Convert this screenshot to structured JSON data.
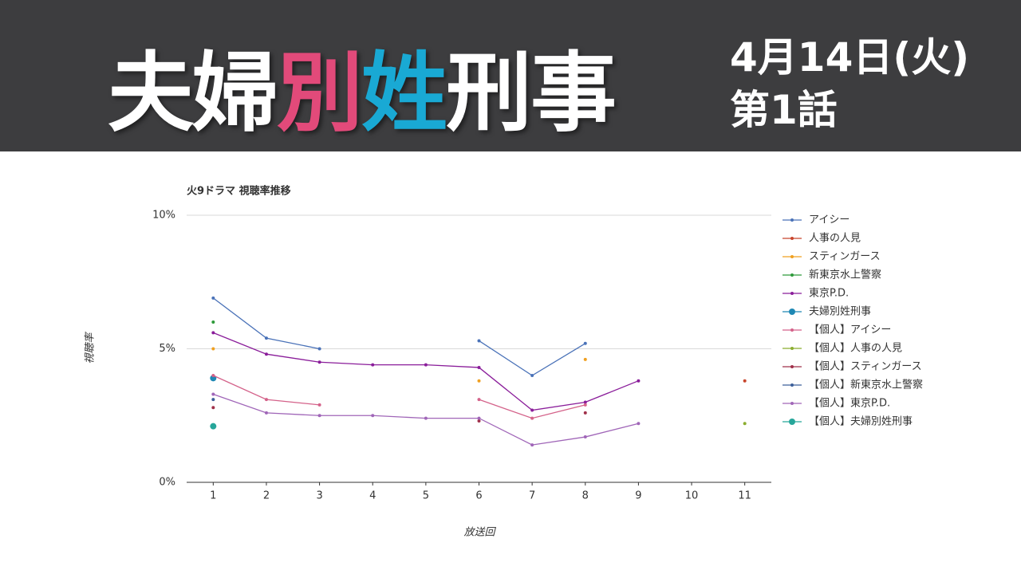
{
  "header": {
    "title_segments": [
      {
        "text": "夫婦",
        "color": "#ffffff"
      },
      {
        "text": "別",
        "color": "#e24a7a"
      },
      {
        "text": "姓",
        "color": "#19a9d4"
      },
      {
        "text": "刑事",
        "color": "#ffffff"
      }
    ],
    "date": "4月14日(火)",
    "episode": "第1話"
  },
  "chart_data": {
    "type": "line",
    "title": "火9ドラマ 視聴率推移",
    "x_label": "放送回",
    "y_label": "視聴率",
    "x": [
      1,
      2,
      3,
      4,
      5,
      6,
      7,
      8,
      9,
      10,
      11
    ],
    "xlim": [
      0.5,
      11.5
    ],
    "xticks": [
      1,
      2,
      3,
      4,
      5,
      6,
      7,
      8,
      9,
      10,
      11
    ],
    "ylim": [
      0,
      10
    ],
    "yticks": [
      {
        "value": 0,
        "label": "0%"
      },
      {
        "value": 5,
        "label": "5%"
      },
      {
        "value": 10,
        "label": "10%"
      }
    ],
    "grid": true,
    "series": [
      {
        "name": "アイシー",
        "color": "#4a72b8",
        "marker_radius": 2,
        "values": [
          6.9,
          5.4,
          5.0,
          null,
          null,
          5.3,
          4.0,
          5.2,
          null,
          null,
          null
        ]
      },
      {
        "name": "人事の人見",
        "color": "#c8452c",
        "marker_radius": 2,
        "values": [
          null,
          null,
          null,
          null,
          null,
          null,
          null,
          null,
          null,
          null,
          3.8
        ]
      },
      {
        "name": "スティンガース",
        "color": "#f0a020",
        "marker_radius": 2,
        "values": [
          5.0,
          null,
          null,
          null,
          null,
          3.8,
          null,
          4.6,
          null,
          null,
          null
        ]
      },
      {
        "name": "新東京水上警察",
        "color": "#2e9a3a",
        "marker_radius": 2,
        "values": [
          6.0,
          null,
          null,
          null,
          null,
          null,
          null,
          null,
          null,
          null,
          null
        ]
      },
      {
        "name": "東京P.D.",
        "color": "#8a1d9a",
        "marker_radius": 2,
        "values": [
          5.6,
          4.8,
          4.5,
          4.4,
          4.4,
          4.3,
          2.7,
          3.0,
          3.8,
          null,
          null
        ]
      },
      {
        "name": "夫婦別姓刑事",
        "color": "#1e88b4",
        "marker_radius": 4,
        "values": [
          3.9,
          null,
          null,
          null,
          null,
          null,
          null,
          null,
          null,
          null,
          null
        ]
      },
      {
        "name": "【個人】アイシー",
        "color": "#d4628a",
        "marker_radius": 2,
        "values": [
          4.0,
          3.1,
          2.9,
          null,
          null,
          3.1,
          2.4,
          2.9,
          null,
          null,
          null
        ]
      },
      {
        "name": "【個人】人事の人見",
        "color": "#8bad2f",
        "marker_radius": 2,
        "values": [
          null,
          null,
          null,
          null,
          null,
          null,
          null,
          null,
          null,
          null,
          2.2
        ]
      },
      {
        "name": "【個人】スティンガース",
        "color": "#a0304a",
        "marker_radius": 2,
        "values": [
          2.8,
          null,
          null,
          null,
          null,
          2.3,
          null,
          2.6,
          null,
          null,
          null
        ]
      },
      {
        "name": "【個人】新東京水上警察",
        "color": "#3c5f9a",
        "marker_radius": 2,
        "values": [
          3.1,
          null,
          null,
          null,
          null,
          null,
          null,
          null,
          null,
          null,
          null
        ]
      },
      {
        "name": "【個人】東京P.D.",
        "color": "#a066b8",
        "marker_radius": 2,
        "values": [
          3.3,
          2.6,
          2.5,
          2.5,
          2.4,
          2.4,
          1.4,
          1.7,
          2.2,
          null,
          null
        ]
      },
      {
        "name": "【個人】夫婦別姓刑事",
        "color": "#26a69a",
        "marker_radius": 4,
        "values": [
          2.1,
          null,
          null,
          null,
          null,
          null,
          null,
          null,
          null,
          null,
          null
        ]
      }
    ]
  }
}
